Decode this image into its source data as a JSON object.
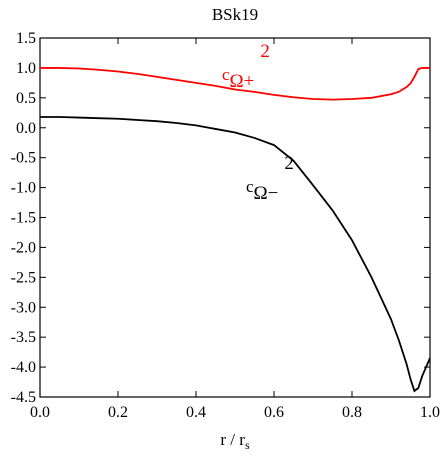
{
  "chart_data": {
    "type": "line",
    "title": "BSk19",
    "x_label": {
      "base": "r / r",
      "sub": "s"
    },
    "x": [
      0,
      0.05,
      0.1,
      0.15,
      0.2,
      0.25,
      0.3,
      0.35,
      0.4,
      0.45,
      0.5,
      0.55,
      0.6,
      0.65,
      0.7,
      0.75,
      0.8,
      0.85,
      0.9,
      0.92,
      0.94,
      0.95,
      0.96,
      0.97,
      0.98,
      1.0
    ],
    "series": [
      {
        "label": {
          "base": "c",
          "sub": "Ω+",
          "sup": "2"
        },
        "color": "#ff0000",
        "values": [
          1.0,
          1.0,
          0.99,
          0.97,
          0.94,
          0.9,
          0.85,
          0.8,
          0.75,
          0.7,
          0.64,
          0.6,
          0.55,
          0.51,
          0.48,
          0.47,
          0.48,
          0.5,
          0.56,
          0.6,
          0.68,
          0.74,
          0.85,
          0.98,
          1.0,
          1.0
        ]
      },
      {
        "label": {
          "base": "c",
          "sub": "Ω−",
          "sup": "2"
        },
        "color": "#000000",
        "values": [
          0.18,
          0.18,
          0.17,
          0.16,
          0.15,
          0.13,
          0.11,
          0.08,
          0.04,
          -0.02,
          -0.08,
          -0.17,
          -0.29,
          -0.55,
          -0.96,
          -1.38,
          -1.88,
          -2.5,
          -3.2,
          -3.55,
          -3.95,
          -4.2,
          -4.4,
          -4.35,
          -4.15,
          -3.85
        ]
      }
    ],
    "xlim": [
      0,
      1
    ],
    "xticks": [
      {
        "value": 0,
        "label": "0.0"
      },
      0.2,
      0.4,
      0.6,
      0.8,
      {
        "value": 1,
        "label": "1.0"
      }
    ],
    "ylim": [
      -4.5,
      1.5
    ],
    "yticks": [
      1.5,
      {
        "value": 1,
        "label": "1.0"
      },
      0.5,
      {
        "value": 0,
        "label": "0.0"
      },
      -0.5,
      {
        "value": -1,
        "label": "-1.0"
      },
      -1.5,
      {
        "value": -2,
        "label": "-2.0"
      },
      -2.5,
      {
        "value": -3,
        "label": "-3.0"
      },
      -3.5,
      {
        "value": -4,
        "label": "-4.0"
      },
      -4.5
    ]
  }
}
